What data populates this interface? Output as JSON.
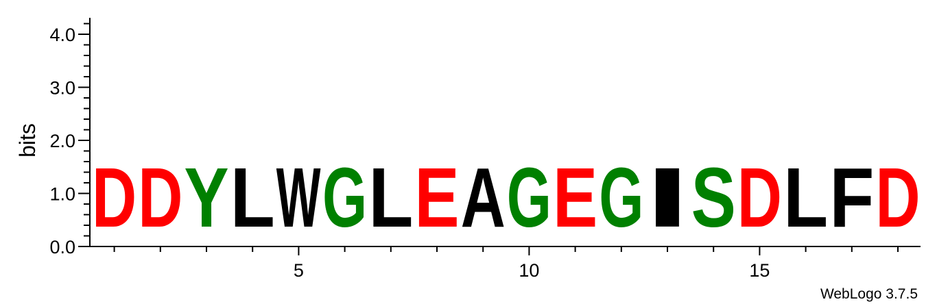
{
  "chart_data": {
    "type": "sequence-logo",
    "title": "",
    "xlabel": "",
    "ylabel": "bits",
    "ylim": [
      0,
      4.3
    ],
    "yticks_major": [
      0.0,
      1.0,
      2.0,
      3.0,
      4.0
    ],
    "ytick_labels": [
      "0.0",
      "1.0",
      "2.0",
      "3.0",
      "4.0"
    ],
    "xticks_labeled": [
      5,
      10,
      15
    ],
    "xtick_labels": [
      "5",
      "10",
      "15"
    ],
    "positions": [
      1,
      2,
      3,
      4,
      5,
      6,
      7,
      8,
      9,
      10,
      11,
      12,
      13,
      14,
      15,
      16,
      17,
      18
    ],
    "letters": [
      "D",
      "D",
      "Y",
      "L",
      "W",
      "G",
      "L",
      "E",
      "A",
      "G",
      "E",
      "G",
      "I",
      "S",
      "D",
      "L",
      "F",
      "D"
    ],
    "bits": [
      1.81,
      1.81,
      1.81,
      1.81,
      1.81,
      1.81,
      1.81,
      1.81,
      1.81,
      1.81,
      1.81,
      1.81,
      1.81,
      1.81,
      1.81,
      1.81,
      1.81,
      1.81
    ],
    "color_scheme": {
      "acidic": "#ff0000",
      "polar": "#008000",
      "hydrophobic": "#000000",
      "basic": "#0000ff",
      "amide": "#800080"
    },
    "letter_colors": [
      "#ff0000",
      "#ff0000",
      "#008000",
      "#000000",
      "#000000",
      "#008000",
      "#000000",
      "#ff0000",
      "#000000",
      "#008000",
      "#ff0000",
      "#008000",
      "#000000",
      "#008000",
      "#ff0000",
      "#000000",
      "#000000",
      "#ff0000"
    ]
  },
  "credit": "WebLogo 3.7.5"
}
